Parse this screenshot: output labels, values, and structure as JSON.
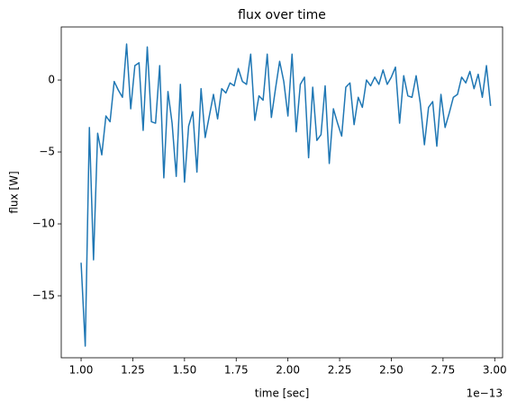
{
  "chart_data": {
    "type": "line",
    "title": "flux over time",
    "x_label": "time [sec]",
    "y_label": "flux [W]",
    "x_offset_label": "1e−13",
    "x": [
      1.0,
      1.02,
      1.04,
      1.06,
      1.08,
      1.1,
      1.12,
      1.14,
      1.16,
      1.18,
      1.2,
      1.22,
      1.24,
      1.26,
      1.28,
      1.3,
      1.32,
      1.34,
      1.36,
      1.38,
      1.4,
      1.42,
      1.44,
      1.46,
      1.48,
      1.5,
      1.52,
      1.54,
      1.56,
      1.58,
      1.6,
      1.62,
      1.64,
      1.66,
      1.68,
      1.7,
      1.72,
      1.74,
      1.76,
      1.78,
      1.8,
      1.82,
      1.84,
      1.86,
      1.88,
      1.9,
      1.92,
      1.94,
      1.96,
      1.98,
      2.0,
      2.02,
      2.04,
      2.06,
      2.08,
      2.1,
      2.12,
      2.14,
      2.16,
      2.18,
      2.2,
      2.22,
      2.24,
      2.26,
      2.28,
      2.3,
      2.32,
      2.34,
      2.36,
      2.38,
      2.4,
      2.42,
      2.44,
      2.46,
      2.48,
      2.5,
      2.52,
      2.54,
      2.56,
      2.58,
      2.6,
      2.62,
      2.64,
      2.66,
      2.68,
      2.7,
      2.72,
      2.74,
      2.76,
      2.78,
      2.8,
      2.82,
      2.84,
      2.86,
      2.88,
      2.9,
      2.92,
      2.94,
      2.96,
      2.98
    ],
    "series": [
      {
        "name": "flux",
        "color": "#1f77b4",
        "values": [
          -12.7,
          -18.5,
          -3.3,
          -12.5,
          -3.7,
          -5.2,
          -2.5,
          -2.9,
          -0.1,
          -0.7,
          -1.2,
          2.5,
          -2.0,
          1.0,
          1.2,
          -3.5,
          2.3,
          -2.9,
          -3.0,
          1.0,
          -6.8,
          -0.8,
          -3.0,
          -6.7,
          -0.3,
          -7.1,
          -3.2,
          -2.2,
          -6.4,
          -0.6,
          -4.0,
          -2.5,
          -1.0,
          -2.7,
          -0.6,
          -0.9,
          -0.2,
          -0.4,
          0.8,
          -0.1,
          -0.3,
          1.8,
          -2.8,
          -1.1,
          -1.4,
          1.8,
          -2.6,
          -0.6,
          1.3,
          -0.1,
          -2.5,
          1.8,
          -3.6,
          -0.3,
          0.2,
          -5.4,
          -0.5,
          -4.2,
          -3.8,
          -0.4,
          -5.8,
          -2.0,
          -3.0,
          -3.9,
          -0.5,
          -0.2,
          -3.1,
          -1.2,
          -1.9,
          0.0,
          -0.4,
          0.2,
          -0.3,
          0.7,
          -0.3,
          0.2,
          0.9,
          -3.0,
          0.3,
          -1.1,
          -1.2,
          0.3,
          -1.6,
          -4.5,
          -1.9,
          -1.5,
          -4.6,
          -1.0,
          -3.3,
          -2.3,
          -1.2,
          -1.0,
          0.2,
          -0.2,
          0.6,
          -0.6,
          0.4,
          -1.2,
          1.0,
          -1.8
        ]
      }
    ],
    "xlim": [
      0.904,
      3.038
    ],
    "ylim": [
      -19.31,
      3.69
    ],
    "xticks": [
      {
        "value": 1.0,
        "label": "1.00"
      },
      {
        "value": 1.25,
        "label": "1.25"
      },
      {
        "value": 1.5,
        "label": "1.50"
      },
      {
        "value": 1.75,
        "label": "1.75"
      },
      {
        "value": 2.0,
        "label": "2.00"
      },
      {
        "value": 2.25,
        "label": "2.25"
      },
      {
        "value": 2.5,
        "label": "2.50"
      },
      {
        "value": 2.75,
        "label": "2.75"
      },
      {
        "value": 3.0,
        "label": "3.00"
      }
    ],
    "yticks": [
      {
        "value": -15,
        "label": "−15"
      },
      {
        "value": -10,
        "label": "−10"
      },
      {
        "value": -5,
        "label": "−5"
      },
      0
    ],
    "grid": false
  }
}
